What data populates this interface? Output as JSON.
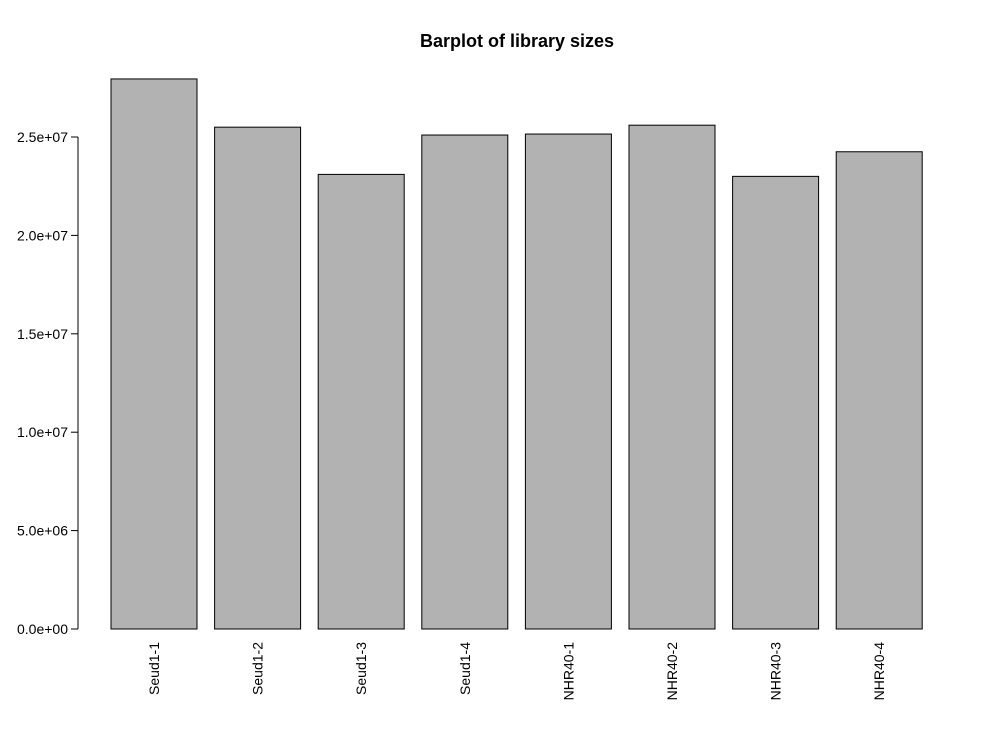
{
  "chart_data": {
    "type": "bar",
    "title": "Barplot of library sizes",
    "xlabel": "",
    "ylabel": "",
    "categories": [
      "Seud1-1",
      "Seud1-2",
      "Seud1-3",
      "Seud1-4",
      "NHR40-1",
      "NHR40-2",
      "NHR40-3",
      "NHR40-4"
    ],
    "values": [
      27950000,
      25500000,
      23100000,
      25100000,
      25150000,
      25600000,
      23000000,
      24250000
    ],
    "ylim": [
      0,
      28000000
    ],
    "yticks": [
      0,
      5000000,
      10000000,
      15000000,
      20000000,
      25000000
    ],
    "ytick_labels": [
      "0.0e+00",
      "5.0e+06",
      "1.0e+07",
      "1.5e+07",
      "2.0e+07",
      "2.5e+07"
    ],
    "bar_color": "#b2b2b2",
    "bar_border_color": "#000000",
    "grid": false
  }
}
